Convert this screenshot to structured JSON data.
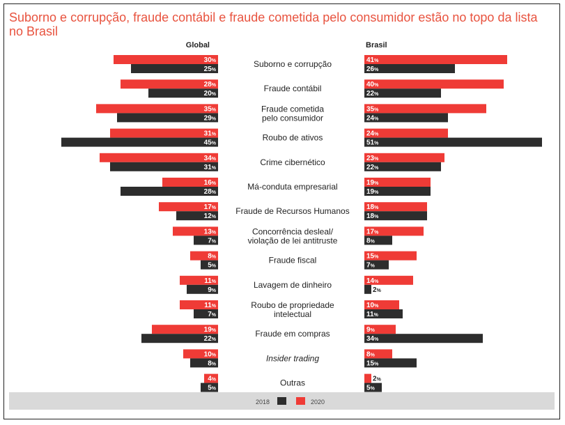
{
  "title": "Suborno e corrupção, fraude contábil e fraude cometida pelo consumidor estão no topo da lista no Brasil",
  "colors": {
    "c2020": "#ef3b36",
    "c2018": "#2d2d2d",
    "legend_bg": "#d9d9d9",
    "title": "#e8533f"
  },
  "chart_data": {
    "type": "bar",
    "orientation": "horizontal",
    "panels": [
      "Global",
      "Brasil"
    ],
    "unit": "%",
    "legend": [
      "2018",
      "2020"
    ],
    "legend_position": "bottom",
    "categories": [
      "Suborno e corrupção",
      "Fraude contábil",
      "Fraude cometida pelo consumidor",
      "Roubo de ativos",
      "Crime cibernético",
      "Má-conduta empresarial",
      "Fraude de Recursos Humanos",
      "Concorrência desleal/ violação de lei antitruste",
      "Fraude fiscal",
      "Lavagem de dinheiro",
      "Roubo de propriedade intelectual",
      "Fraude em compras",
      "Insider trading",
      "Outras"
    ],
    "category_lines": [
      [
        "Suborno e corrupção"
      ],
      [
        "Fraude contábil"
      ],
      [
        "Fraude cometida",
        "pelo consumidor"
      ],
      [
        "Roubo de ativos"
      ],
      [
        "Crime cibernético"
      ],
      [
        "Má-conduta empresarial"
      ],
      [
        "Fraude de Recursos Humanos"
      ],
      [
        "Concorrência desleal/",
        "violação de lei antitruste"
      ],
      [
        "Fraude fiscal"
      ],
      [
        "Lavagem de dinheiro"
      ],
      [
        "Roubo de propriedade",
        "intelectual"
      ],
      [
        "Fraude em compras"
      ],
      [
        "Insider trading"
      ],
      [
        "Outras"
      ]
    ],
    "italic_categories": [
      "Insider trading"
    ],
    "series": [
      {
        "name": "2020",
        "panel": "Global",
        "values": [
          30,
          28,
          35,
          31,
          34,
          16,
          17,
          13,
          8,
          11,
          11,
          19,
          10,
          4
        ]
      },
      {
        "name": "2018",
        "panel": "Global",
        "values": [
          25,
          20,
          29,
          45,
          31,
          28,
          12,
          7,
          5,
          9,
          7,
          22,
          8,
          5
        ]
      },
      {
        "name": "2020",
        "panel": "Brasil",
        "values": [
          41,
          40,
          35,
          24,
          23,
          19,
          18,
          17,
          15,
          14,
          10,
          9,
          8,
          2
        ]
      },
      {
        "name": "2018",
        "panel": "Brasil",
        "values": [
          26,
          22,
          24,
          51,
          22,
          19,
          18,
          8,
          7,
          2,
          11,
          34,
          15,
          5
        ]
      }
    ]
  }
}
